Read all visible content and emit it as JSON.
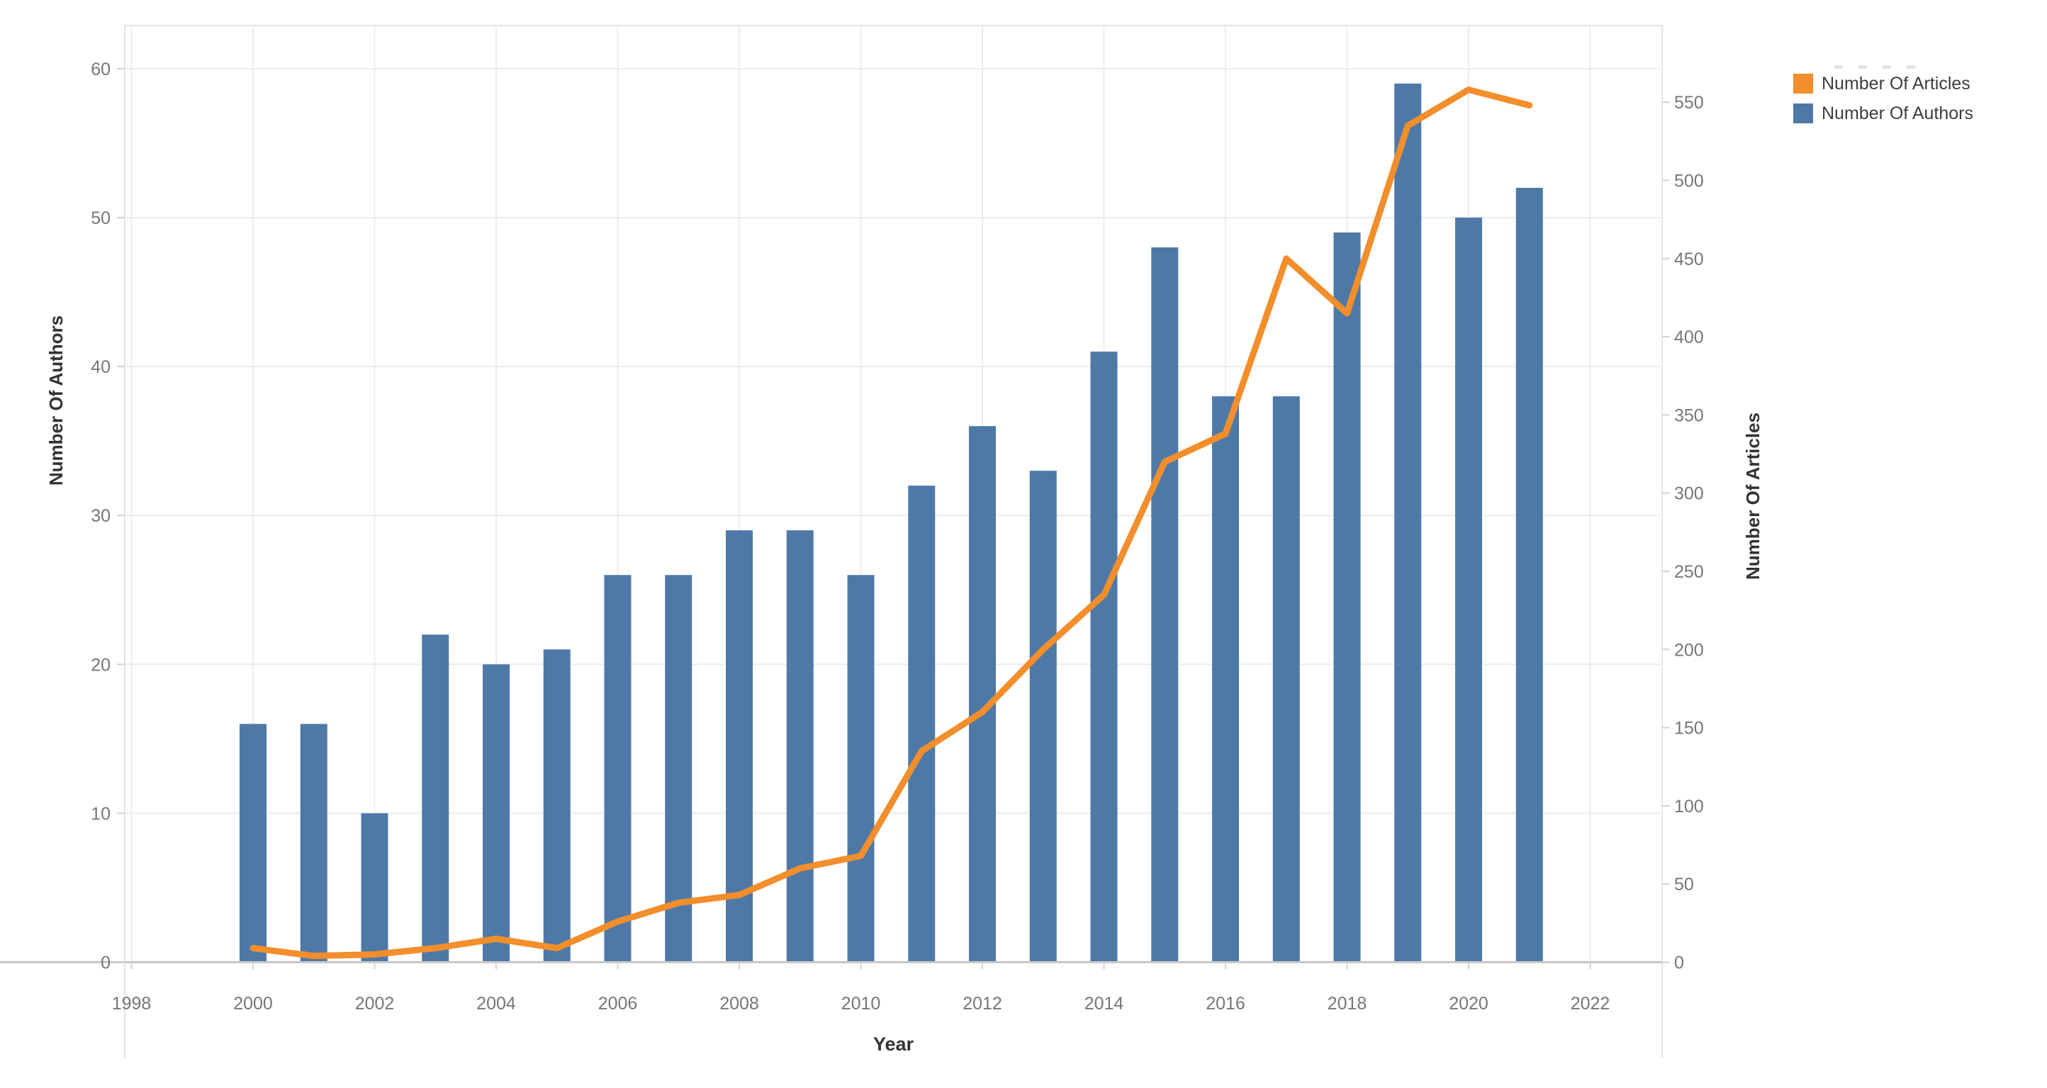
{
  "chart_data": {
    "type": "bar+line-dual-axis",
    "title": "",
    "xlabel": "Year",
    "x_tick_labels": [
      "1998",
      "2000",
      "2002",
      "2004",
      "2006",
      "2008",
      "2010",
      "2012",
      "2014",
      "2016",
      "2018",
      "2020",
      "2022"
    ],
    "categories": [
      2000,
      2001,
      2002,
      2003,
      2004,
      2005,
      2006,
      2007,
      2008,
      2009,
      2010,
      2011,
      2012,
      2013,
      2014,
      2015,
      2016,
      2017,
      2018,
      2019,
      2020,
      2021
    ],
    "series": [
      {
        "name": "Number Of Authors",
        "type": "bar",
        "axis": "left",
        "color": "#4e79a7",
        "values": [
          16,
          16,
          10,
          22,
          20,
          21,
          26,
          26,
          29,
          29,
          26,
          32,
          36,
          33,
          41,
          48,
          38,
          38,
          49,
          59,
          50,
          52
        ]
      },
      {
        "name": "Number Of Articles",
        "type": "line",
        "axis": "right",
        "color": "#f28e2b",
        "values": [
          9,
          4,
          5,
          9,
          15,
          9,
          26,
          38,
          43,
          60,
          68,
          135,
          160,
          200,
          235,
          320,
          338,
          450,
          415,
          535,
          558,
          548
        ]
      }
    ],
    "left_axis": {
      "label": "Number Of Authors",
      "ticks": [
        0,
        10,
        20,
        30,
        40,
        50,
        60
      ],
      "range": [
        0,
        60
      ],
      "grid": true
    },
    "right_axis": {
      "label": "Number Of Articles",
      "ticks": [
        0,
        50,
        100,
        150,
        200,
        250,
        300,
        350,
        400,
        450,
        500,
        550
      ],
      "range": [
        0,
        550
      ],
      "grid": false
    },
    "x_axis": {
      "label": "Year",
      "grid": true
    },
    "legend": {
      "position": "top-right",
      "entries": [
        {
          "label": "Number Of Articles",
          "color": "#f28e2b"
        },
        {
          "label": "Number Of Authors",
          "color": "#4e79a7"
        }
      ]
    }
  },
  "colors": {
    "background": "#ffffff",
    "bar": "#4e79a7",
    "line": "#f28e2b",
    "gridline": "#ececec",
    "panel_border": "#dcdcdc",
    "baseline": "#c7c7c7",
    "tick_mark": "#d2d2d2",
    "tick_text": "#767676",
    "axis_title_text": "#333333",
    "legend_text": "#3d3d3d"
  }
}
